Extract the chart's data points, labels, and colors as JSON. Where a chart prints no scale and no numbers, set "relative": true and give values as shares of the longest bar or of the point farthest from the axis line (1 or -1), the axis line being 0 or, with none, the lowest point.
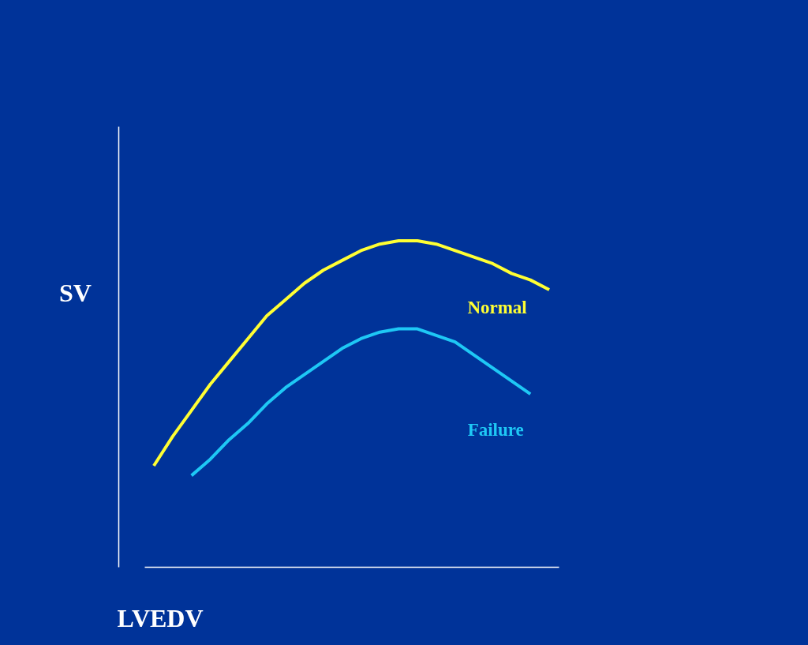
{
  "chart_data": {
    "type": "line",
    "relative": true,
    "xlabel": "LVEDV",
    "ylabel": "SV",
    "grid": false,
    "tick_labels": false,
    "marker": "none",
    "line_style": "solid",
    "categories": [
      null,
      null,
      null,
      null,
      null,
      null,
      null,
      null,
      null,
      null,
      null,
      null,
      null,
      null,
      null,
      null,
      null,
      null,
      null,
      null,
      null,
      null
    ],
    "series": [
      {
        "name": "Normal",
        "color": "#ffff33",
        "values": [
          0.31,
          0.4,
          0.48,
          0.56,
          0.63,
          0.7,
          0.77,
          0.82,
          0.87,
          0.91,
          0.94,
          0.97,
          0.99,
          1.0,
          1.0,
          0.99,
          0.97,
          0.95,
          0.93,
          0.9,
          0.88,
          0.85
        ]
      },
      {
        "name": "Failure",
        "color": "#1ec8f5",
        "values": [
          null,
          null,
          0.28,
          0.33,
          0.39,
          0.44,
          0.5,
          0.55,
          0.59,
          0.63,
          0.67,
          0.7,
          0.72,
          0.73,
          0.73,
          0.71,
          0.69,
          0.65,
          0.61,
          0.57,
          0.53,
          null
        ]
      }
    ]
  }
}
